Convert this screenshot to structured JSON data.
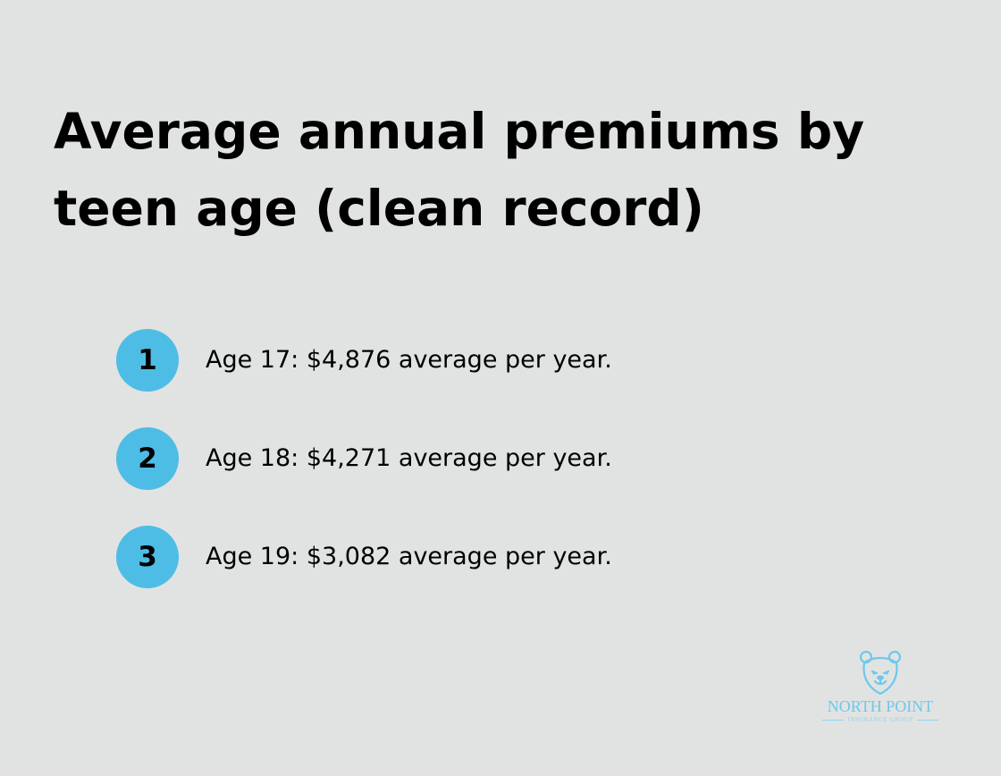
{
  "title": "Average annual premiums by teen age (clean record)",
  "items": [
    {
      "number": "1",
      "text": "Age 17: $4,876 average per year."
    },
    {
      "number": "2",
      "text": "Age 18: $4,271 average per year."
    },
    {
      "number": "3",
      "text": "Age 19: $3,082 average per year."
    }
  ],
  "logo": {
    "name": "NORTH POINT",
    "subtitle": "INSURANCE GROUP",
    "icon": "bear-icon"
  },
  "colors": {
    "background": "#e1e3e3",
    "badge": "#4ebde6",
    "logo": "#6ec8ec"
  }
}
